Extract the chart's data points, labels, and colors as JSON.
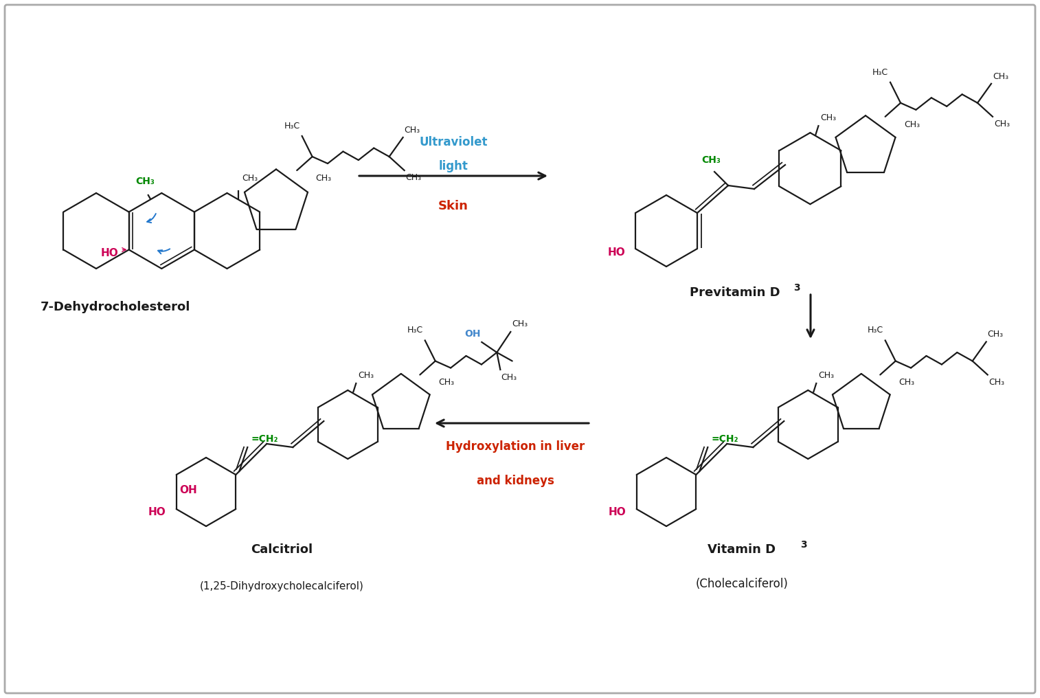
{
  "background_color": "#ffffff",
  "border_color": "#aaaaaa",
  "text_7dhc": "7-Dehydrocholesterol",
  "text_previtd3": "Previtamin D",
  "text_previtd3_sub": "3",
  "text_vitd3_line1": "Vitamin D",
  "text_vitd3_sub": "3",
  "text_vitd3_line2": "(Cholecalciferol)",
  "text_calcitriol_line1": "Calcitriol",
  "text_calcitriol_line2": "(1,25-Dihydroxycholecalciferol)",
  "text_uv_line1": "Ultraviolet",
  "text_uv_line2": "light",
  "text_skin": "Skin",
  "text_hydroxylation_line1": "Hydroxylation in liver",
  "text_hydroxylation_line2": "and kidneys",
  "color_ho": "#cc0055",
  "color_ch3_green": "#008800",
  "color_uv": "#3399cc",
  "color_skin": "#cc2200",
  "color_hydroxylation": "#cc2200",
  "color_black": "#1a1a1a",
  "color_blue_arrow": "#2277cc",
  "color_oh_blue": "#4488cc"
}
